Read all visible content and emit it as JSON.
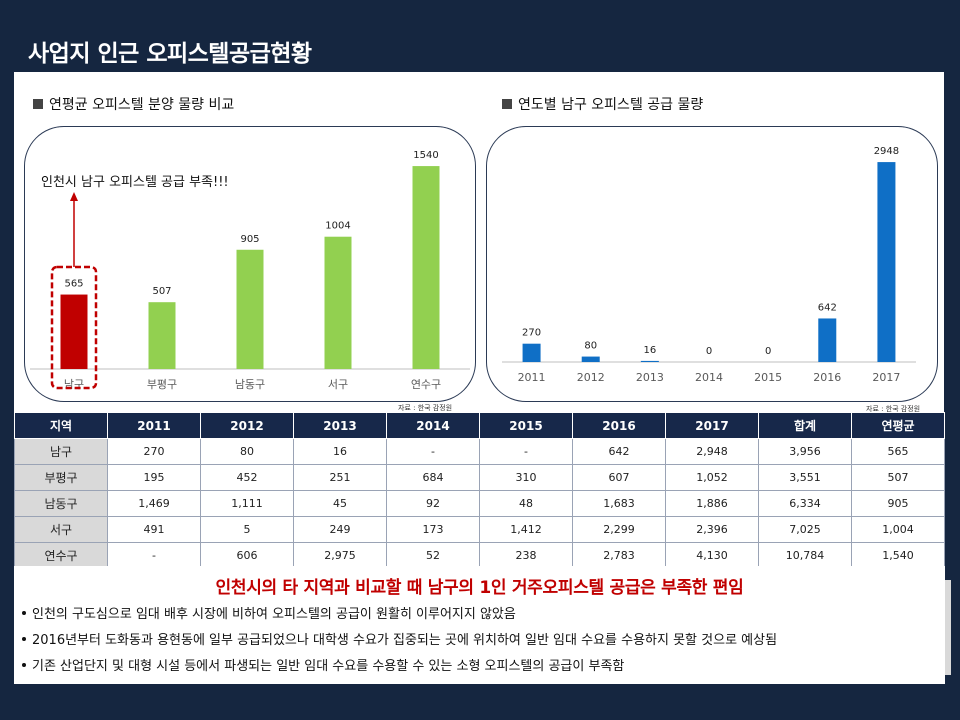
{
  "title": "사업지 인근 오피스텔공급현황",
  "left_section_title": "연평균 오피스텔 분양 물량 비교",
  "right_section_title": "연도별 남구 오피스텔 공급 물량",
  "source_left": "자료 : 한국 감정원",
  "source_right": "자료 : 한국 감정원",
  "chart_data": [
    {
      "type": "bar",
      "title": "연평균 오피스텔 분양 물량 비교",
      "categories": [
        "남구",
        "부평구",
        "남동구",
        "서구",
        "연수구"
      ],
      "values": [
        565,
        507,
        905,
        1004,
        1540
      ],
      "highlight_index": 0,
      "annotation": "인천시 남구 오피스텔 공급 부족!!!",
      "colors": {
        "normal": "#92d050",
        "highlight": "#c00000"
      },
      "ylim": [
        0,
        1700
      ],
      "grid": false
    },
    {
      "type": "bar",
      "title": "연도별 남구 오피스텔 공급 물량",
      "categories": [
        "2011",
        "2012",
        "2013",
        "2014",
        "2015",
        "2016",
        "2017"
      ],
      "values": [
        270,
        80,
        16,
        0,
        0,
        642,
        2948
      ],
      "colors": {
        "normal": "#0f6fc6"
      },
      "ylim": [
        0,
        3200
      ],
      "grid": false
    }
  ],
  "table": {
    "headers": [
      "지역",
      "2011",
      "2012",
      "2013",
      "2014",
      "2015",
      "2016",
      "2017",
      "합계",
      "연평균"
    ],
    "rows": [
      [
        "남구",
        "270",
        "80",
        "16",
        "-",
        "-",
        "642",
        "2,948",
        "3,956",
        "565"
      ],
      [
        "부평구",
        "195",
        "452",
        "251",
        "684",
        "310",
        "607",
        "1,052",
        "3,551",
        "507"
      ],
      [
        "남동구",
        "1,469",
        "1,111",
        "45",
        "92",
        "48",
        "1,683",
        "1,886",
        "6,334",
        "905"
      ],
      [
        "서구",
        "491",
        "5",
        "249",
        "173",
        "1,412",
        "2,299",
        "2,396",
        "7,025",
        "1,004"
      ],
      [
        "연수구",
        "-",
        "606",
        "2,975",
        "52",
        "238",
        "2,783",
        "4,130",
        "10,784",
        "1,540"
      ]
    ]
  },
  "summary": {
    "headline": "인천시의 타 지역과 비교할 때 남구의 1인 거주오피스텔 공급은 부족한 편임",
    "bullets": [
      "인천의 구도심으로 임대 배후 시장에 비하여 오피스텔의 공급이 원활히 이루어지지 않았음",
      "2016년부터 도화동과 용현동에 일부 공급되었으나 대학생 수요가 집중되는 곳에 위치하여 일반 임대 수요를 수용하지 못할 것으로 예상됨",
      "기존 산업단지 및 대형 시설 등에서 파생되는 일반 임대 수요를 수용할 수 있는 소형 오피스텔의 공급이 부족함"
    ]
  }
}
